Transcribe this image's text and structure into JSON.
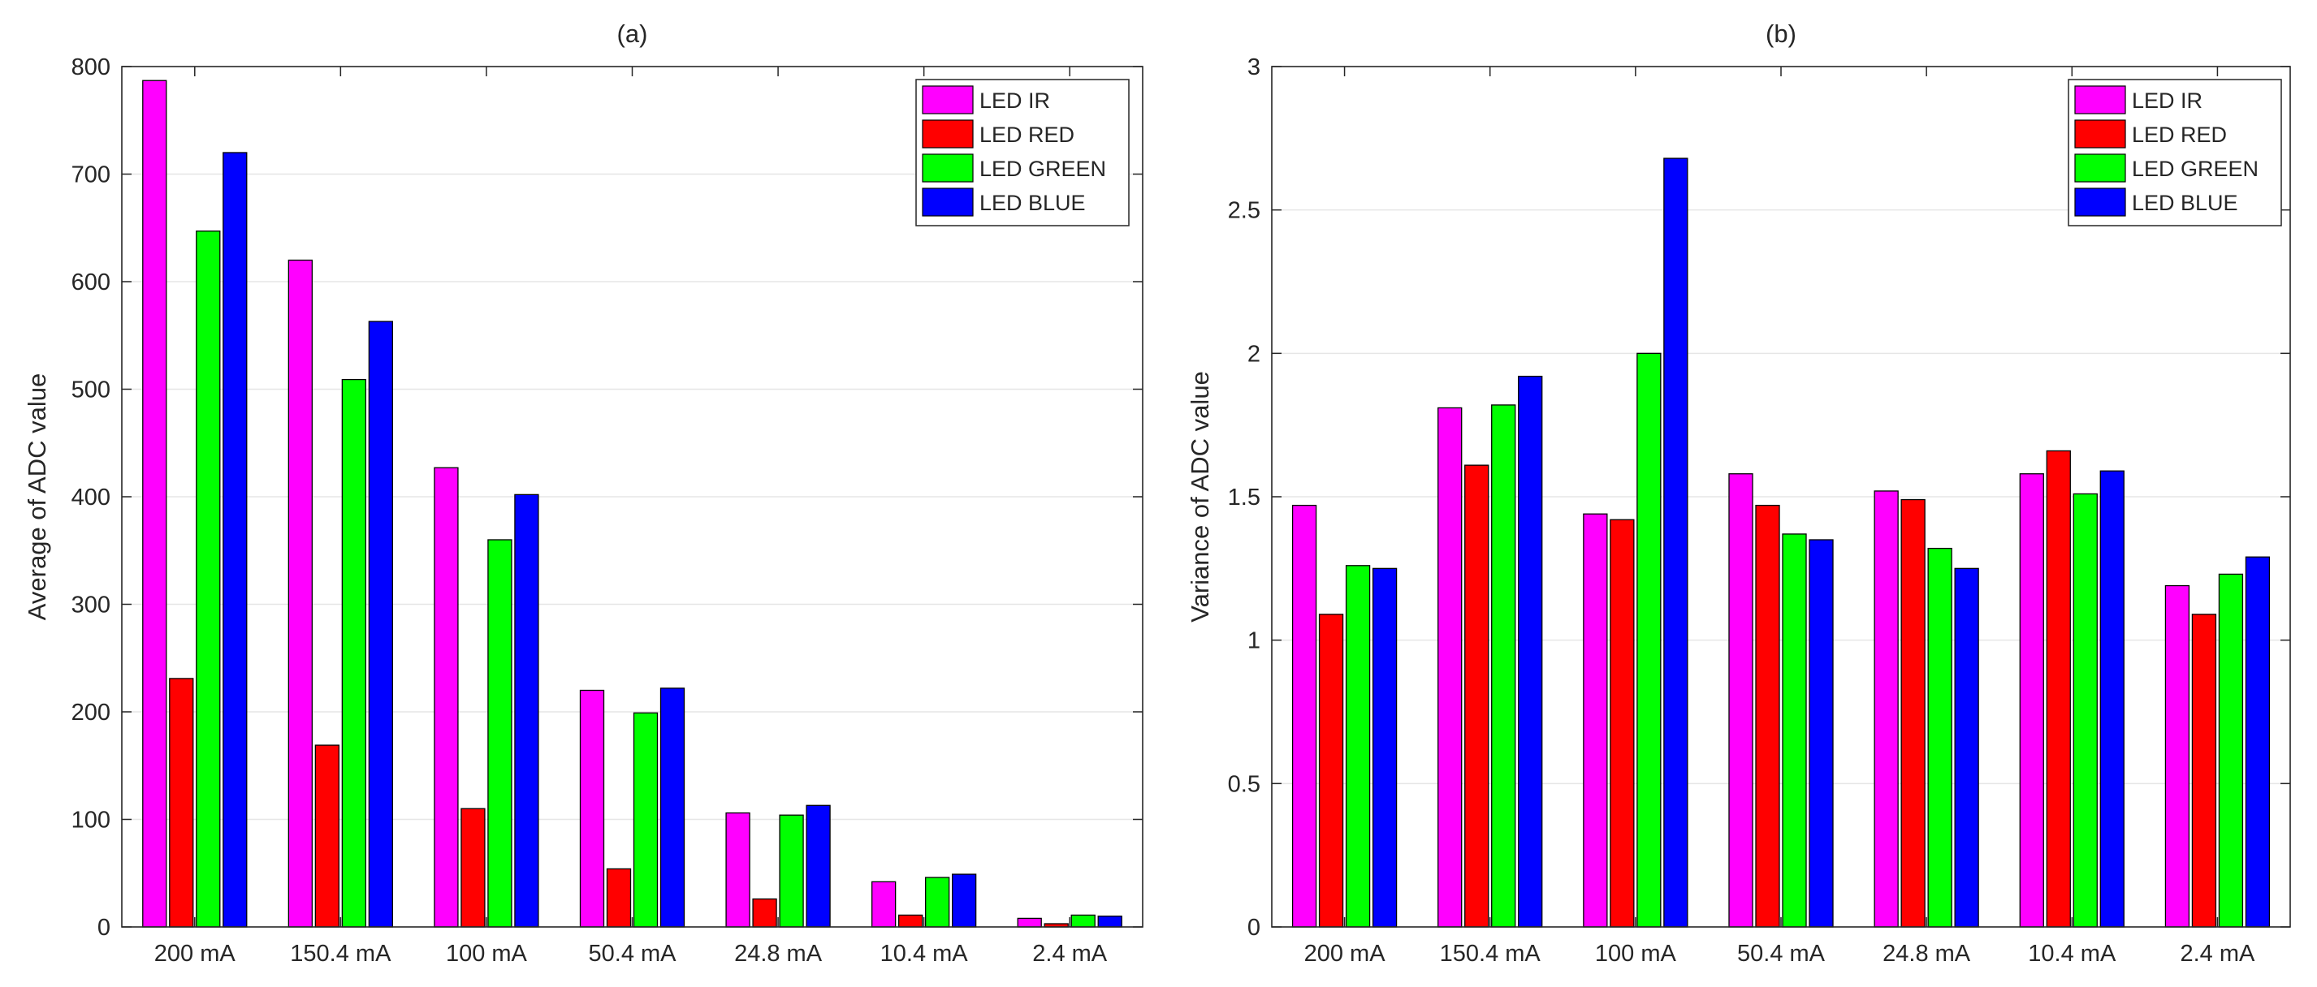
{
  "chart_data": [
    {
      "type": "bar",
      "title": "(a)",
      "xlabel": "",
      "ylabel": "Average of ADC value",
      "ylim": [
        0,
        800
      ],
      "yticks": [
        0,
        100,
        200,
        300,
        400,
        500,
        600,
        700,
        800
      ],
      "ytick_labels": [
        "0",
        "100",
        "200",
        "300",
        "400",
        "500",
        "600",
        "700",
        "800"
      ],
      "grid": true,
      "legend_position": "top-right",
      "categories": [
        "200 mA",
        "150.4 mA",
        "100 mA",
        "50.4 mA",
        "24.8 mA",
        "10.4 mA",
        "2.4 mA"
      ],
      "series": [
        {
          "name": "LED IR",
          "color": "#ff00ff",
          "values": [
            787,
            620,
            427,
            220,
            106,
            42,
            8
          ]
        },
        {
          "name": "LED RED",
          "color": "#ff0000",
          "values": [
            231,
            169,
            110,
            54,
            26,
            11,
            3
          ]
        },
        {
          "name": "LED GREEN",
          "color": "#00ff00",
          "values": [
            647,
            509,
            360,
            199,
            104,
            46,
            11
          ]
        },
        {
          "name": "LED BLUE",
          "color": "#0000ff",
          "values": [
            720,
            563,
            402,
            222,
            113,
            49,
            10
          ]
        }
      ]
    },
    {
      "type": "bar",
      "title": "(b)",
      "xlabel": "",
      "ylabel": "Variance of ADC value",
      "ylim": [
        0,
        3
      ],
      "yticks": [
        0,
        0.5,
        1,
        1.5,
        2,
        2.5,
        3
      ],
      "ytick_labels": [
        "0",
        "0.5",
        "1",
        "1.5",
        "2",
        "2.5",
        "3"
      ],
      "grid": true,
      "legend_position": "top-right",
      "categories": [
        "200 mA",
        "150.4 mA",
        "100 mA",
        "50.4 mA",
        "24.8 mA",
        "10.4 mA",
        "2.4 mA"
      ],
      "series": [
        {
          "name": "LED IR",
          "color": "#ff00ff",
          "values": [
            1.47,
            1.81,
            1.44,
            1.58,
            1.52,
            1.58,
            1.19
          ]
        },
        {
          "name": "LED RED",
          "color": "#ff0000",
          "values": [
            1.09,
            1.61,
            1.42,
            1.47,
            1.49,
            1.66,
            1.09
          ]
        },
        {
          "name": "LED GREEN",
          "color": "#00ff00",
          "values": [
            1.26,
            1.82,
            2.0,
            1.37,
            1.32,
            1.51,
            1.23
          ]
        },
        {
          "name": "LED BLUE",
          "color": "#0000ff",
          "values": [
            1.25,
            1.92,
            2.68,
            1.35,
            1.25,
            1.59,
            1.29
          ]
        }
      ]
    }
  ]
}
